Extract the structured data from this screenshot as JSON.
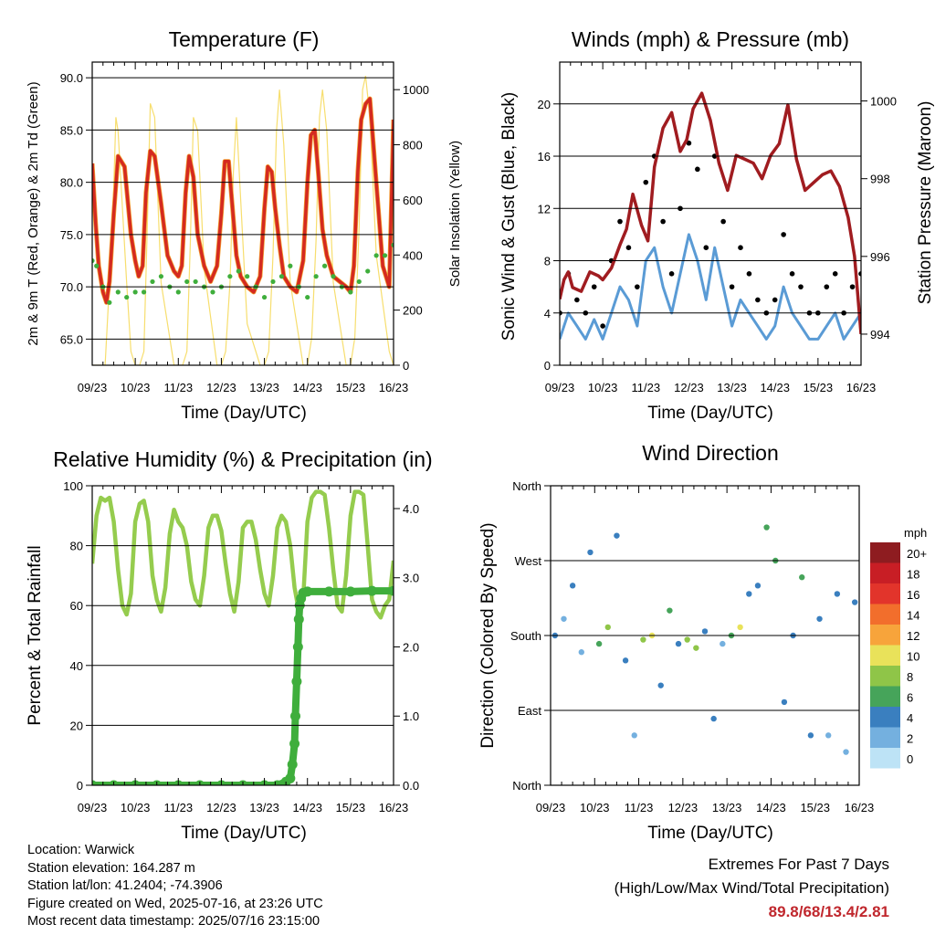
{
  "colors": {
    "temp2m": "#d42a20",
    "temp9m": "#f4a030",
    "dewpoint": "#3fae3c",
    "solar": "#f7de6e",
    "wind": "#5a9bd5",
    "gust": "#000000",
    "pressure": "#a01c20",
    "rh": "#95cc4e",
    "precip": "#3fae3c"
  },
  "x_ticks": [
    "09/23",
    "10/23",
    "11/23",
    "12/23",
    "13/23",
    "14/23",
    "15/23",
    "16/23"
  ],
  "chart_data": [
    {
      "id": "temperature",
      "type": "line",
      "title": "Temperature (F)",
      "xlabel": "Time (Day/UTC)",
      "ylabel": "2m & 9m T (Red, Orange) & 2m Td (Green)",
      "ylabel_right": "Solar Insolation (Yellow)",
      "xlim": [
        0,
        7
      ],
      "ylim": [
        62.5,
        91.5
      ],
      "ylim_right": [
        0,
        1100
      ],
      "yticks": [
        "65.0",
        "70.0",
        "75.0",
        "80.0",
        "85.0",
        "90.0"
      ],
      "yticks_right": [
        "0",
        "200",
        "400",
        "600",
        "800",
        "1000"
      ],
      "series": [
        {
          "x": [
            0,
            0.08,
            0.15,
            0.25,
            0.33,
            0.4,
            0.5,
            0.6,
            0.75,
            0.9,
            1.0,
            1.08,
            1.17,
            1.25,
            1.35,
            1.45,
            1.6,
            1.75,
            1.9,
            2.0,
            2.08,
            2.17,
            2.25,
            2.35,
            2.45,
            2.6,
            2.75,
            2.9,
            3.0,
            3.08,
            3.17,
            3.25,
            3.35,
            3.45,
            3.6,
            3.75,
            3.9,
            4.0,
            4.08,
            4.17,
            4.25,
            4.35,
            4.45,
            4.6,
            4.75,
            4.9,
            5.0,
            5.08,
            5.17,
            5.25,
            5.35,
            5.45,
            5.6,
            5.75,
            5.9,
            6.0,
            6.08,
            6.17,
            6.25,
            6.35,
            6.45,
            6.6,
            6.75,
            6.9,
            7.0
          ],
          "y": [
            81.8,
            76,
            72,
            69.5,
            68.5,
            70.5,
            77,
            82.5,
            81.5,
            75,
            72.5,
            71,
            72,
            79,
            83,
            82.5,
            78,
            73,
            71.5,
            71,
            72,
            79,
            82.5,
            80.5,
            75,
            72,
            70.5,
            72,
            77,
            82,
            82,
            78,
            73,
            71,
            70,
            69.5,
            71,
            77.5,
            81.5,
            81,
            77.5,
            74,
            71,
            70,
            69.5,
            72.5,
            80,
            84.5,
            85,
            81,
            75.5,
            73,
            71,
            70.5,
            70,
            69.5,
            72,
            81,
            86,
            87.5,
            88,
            80,
            72,
            70,
            86
          ]
        },
        {
          "x": [
            0,
            0.1,
            0.25,
            0.4,
            0.6,
            0.8,
            1.0,
            1.2,
            1.4,
            1.6,
            1.8,
            2.0,
            2.2,
            2.4,
            2.6,
            2.8,
            3.0,
            3.2,
            3.4,
            3.6,
            3.8,
            4.0,
            4.2,
            4.4,
            4.6,
            4.8,
            5.0,
            5.2,
            5.4,
            5.6,
            5.8,
            6.0,
            6.2,
            6.4,
            6.6,
            6.8,
            7.0
          ],
          "y": [
            72.5,
            72,
            70,
            68.5,
            69.5,
            69,
            69.5,
            69.5,
            70.5,
            71,
            70,
            69.5,
            70.5,
            70.5,
            70,
            69.5,
            70,
            71,
            71.5,
            71,
            70,
            69,
            70.5,
            71,
            72,
            70,
            69,
            71,
            72,
            71,
            70,
            69.5,
            70.5,
            71.5,
            73,
            73,
            74
          ]
        },
        {
          "x": [
            0,
            0.1,
            0.2,
            0.3,
            0.4,
            0.5,
            0.55,
            0.6,
            0.8,
            0.9,
            1.0,
            1.1,
            1.2,
            1.28,
            1.35,
            1.45,
            1.6,
            1.9,
            2.0,
            2.1,
            2.2,
            2.28,
            2.35,
            2.45,
            2.6,
            2.9,
            3.0,
            3.1,
            3.2,
            3.28,
            3.35,
            3.45,
            3.6,
            3.9,
            4.0,
            4.1,
            4.2,
            4.28,
            4.35,
            4.45,
            4.6,
            4.9,
            5.0,
            5.1,
            5.2,
            5.28,
            5.35,
            5.45,
            5.6,
            5.9,
            6.0,
            6.1,
            6.2,
            6.28,
            6.35,
            6.45,
            6.6,
            6.9,
            7.0
          ],
          "y": [
            0,
            0,
            0,
            0,
            300,
            650,
            900,
            850,
            300,
            50,
            0,
            0,
            50,
            500,
            950,
            900,
            300,
            0,
            0,
            0,
            50,
            450,
            900,
            850,
            350,
            0,
            0,
            50,
            300,
            700,
            900,
            600,
            150,
            0,
            0,
            50,
            400,
            850,
            1000,
            800,
            300,
            0,
            0,
            100,
            450,
            900,
            1000,
            850,
            300,
            0,
            0,
            100,
            500,
            1000,
            1050,
            900,
            400,
            50,
            0
          ]
        }
      ]
    },
    {
      "id": "winds",
      "type": "scatter",
      "title": "Winds (mph) & Pressure (mb)",
      "xlabel": "Time (Day/UTC)",
      "ylabel": "Sonic Wind & Gust (Blue, Black)",
      "ylabel_right": "Station Pressure (Maroon)",
      "xlim": [
        0,
        7
      ],
      "ylim": [
        0,
        23.2
      ],
      "ylim_right": [
        993.2,
        1001
      ],
      "yticks": [
        "0",
        "4",
        "8",
        "12",
        "16",
        "20"
      ],
      "yticks_right": [
        "994",
        "996",
        "998",
        "1000"
      ],
      "series": [
        {
          "x": [
            0,
            0.2,
            0.4,
            0.6,
            0.8,
            1.0,
            1.2,
            1.4,
            1.6,
            1.8,
            2.0,
            2.2,
            2.4,
            2.6,
            2.8,
            3.0,
            3.2,
            3.4,
            3.6,
            3.8,
            4.0,
            4.2,
            4.4,
            4.6,
            4.8,
            5.0,
            5.2,
            5.4,
            5.6,
            5.8,
            6.0,
            6.2,
            6.4,
            6.6,
            6.8,
            7.0
          ],
          "y": [
            2,
            4,
            3,
            2,
            3.5,
            2,
            4,
            6,
            5,
            3,
            8,
            9,
            6,
            4,
            7,
            10,
            8,
            5,
            9,
            6,
            3,
            5,
            4,
            3,
            2,
            3,
            6,
            4,
            3,
            2,
            2,
            3,
            4,
            2,
            3,
            4
          ]
        },
        {
          "x": [
            0,
            0.2,
            0.4,
            0.6,
            0.8,
            1.0,
            1.2,
            1.4,
            1.6,
            1.8,
            2.0,
            2.2,
            2.4,
            2.6,
            2.8,
            3.0,
            3.2,
            3.4,
            3.6,
            3.8,
            4.0,
            4.2,
            4.4,
            4.6,
            4.8,
            5.0,
            5.2,
            5.4,
            5.6,
            5.8,
            6.0,
            6.2,
            6.4,
            6.6,
            6.8,
            7.0
          ],
          "y": [
            4,
            7,
            5,
            4,
            6,
            3,
            8,
            11,
            9,
            6,
            14,
            16,
            11,
            7,
            12,
            17,
            15,
            9,
            16,
            11,
            6,
            9,
            7,
            5,
            4,
            5,
            10,
            7,
            6,
            4,
            4,
            6,
            7,
            4,
            6,
            7
          ]
        },
        {
          "x": [
            0,
            0.1,
            0.2,
            0.3,
            0.5,
            0.7,
            0.9,
            1.0,
            1.2,
            1.4,
            1.55,
            1.7,
            1.9,
            2.05,
            2.2,
            2.4,
            2.6,
            2.8,
            2.95,
            3.1,
            3.3,
            3.5,
            3.7,
            3.9,
            4.1,
            4.3,
            4.5,
            4.7,
            4.9,
            5.1,
            5.3,
            5.5,
            5.7,
            5.9,
            6.1,
            6.3,
            6.5,
            6.7,
            6.85,
            7.0
          ],
          "y": [
            994.9,
            995.4,
            995.6,
            995.2,
            995.1,
            995.6,
            995.5,
            995.4,
            995.7,
            996.3,
            996.7,
            997.6,
            996.8,
            996.4,
            998.3,
            999.3,
            999.7,
            998.7,
            999.0,
            999.8,
            1000.2,
            999.5,
            998.4,
            997.7,
            998.6,
            998.5,
            998.4,
            998.0,
            998.6,
            998.9,
            999.9,
            998.5,
            997.7,
            997.9,
            998.1,
            998.2,
            997.8,
            997.0,
            996.0,
            994.0
          ]
        }
      ]
    },
    {
      "id": "humidity",
      "type": "line",
      "title": "Relative Humidity (%) & Precipitation (in)",
      "xlabel": "Time (Day/UTC)",
      "ylabel": "Percent & Total Rainfall",
      "xlim": [
        0,
        7
      ],
      "ylim": [
        0,
        100
      ],
      "ylim_right": [
        0,
        4.33
      ],
      "yticks": [
        "0",
        "20",
        "40",
        "60",
        "80",
        "100"
      ],
      "yticks_right": [
        "0.0",
        "1.0",
        "2.0",
        "3.0",
        "4.0"
      ],
      "series": [
        {
          "x": [
            0,
            0.1,
            0.2,
            0.3,
            0.4,
            0.5,
            0.6,
            0.7,
            0.8,
            0.9,
            1.0,
            1.1,
            1.2,
            1.3,
            1.4,
            1.5,
            1.6,
            1.7,
            1.8,
            1.9,
            2.0,
            2.1,
            2.2,
            2.3,
            2.4,
            2.5,
            2.6,
            2.7,
            2.8,
            2.9,
            3.0,
            3.1,
            3.2,
            3.3,
            3.4,
            3.5,
            3.6,
            3.7,
            3.8,
            3.9,
            4.0,
            4.1,
            4.2,
            4.3,
            4.4,
            4.5,
            4.6,
            4.7,
            4.8,
            4.9,
            5.0,
            5.1,
            5.2,
            5.3,
            5.4,
            5.5,
            5.6,
            5.7,
            5.8,
            5.9,
            6.0,
            6.1,
            6.2,
            6.3,
            6.4,
            6.5,
            6.6,
            6.7,
            6.8,
            6.9,
            7.0
          ],
          "y": [
            74,
            90,
            96,
            95,
            96,
            88,
            72,
            60,
            57,
            64,
            88,
            94,
            95,
            88,
            70,
            62,
            58,
            66,
            84,
            92,
            88,
            86,
            80,
            68,
            62,
            60,
            70,
            86,
            90,
            90,
            85,
            74,
            64,
            58,
            68,
            86,
            88,
            88,
            82,
            72,
            64,
            60,
            70,
            86,
            90,
            88,
            80,
            66,
            58,
            62,
            88,
            96,
            98,
            98,
            97,
            86,
            72,
            60,
            58,
            70,
            90,
            98,
            98,
            97,
            80,
            62,
            58,
            56,
            60,
            62,
            75
          ]
        },
        {
          "x": [
            0,
            0.5,
            1.0,
            1.5,
            2.0,
            2.5,
            3.0,
            3.5,
            4.0,
            4.3,
            4.5,
            4.6,
            4.65,
            4.7,
            4.72,
            4.75,
            4.78,
            4.8,
            4.82,
            4.85,
            4.9,
            5.0,
            5.5,
            6.0,
            6.5,
            7.0
          ],
          "y": [
            0,
            0,
            0,
            0,
            0,
            0,
            0,
            0,
            0,
            0,
            0.05,
            0.1,
            0.3,
            0.6,
            1.0,
            1.5,
            2.0,
            2.4,
            2.6,
            2.7,
            2.78,
            2.8,
            2.8,
            2.8,
            2.81,
            2.81
          ]
        }
      ]
    },
    {
      "id": "wind_direction",
      "type": "scatter",
      "title": "Wind Direction",
      "xlabel": "Time (Day/UTC)",
      "ylabel": "Direction (Colored By Speed)",
      "xlim": [
        0,
        7
      ],
      "ylim": [
        0,
        360
      ],
      "yticks": [
        "North",
        "East",
        "South",
        "West",
        "North"
      ],
      "legend": {
        "title": "mph",
        "labels": [
          "20+",
          "18",
          "16",
          "14",
          "12",
          "10",
          "8",
          "6",
          "4",
          "2",
          "0"
        ],
        "colors": [
          "#8e1c20",
          "#c81e25",
          "#e2342b",
          "#f26e2c",
          "#f7a43b",
          "#e9e25a",
          "#8fc548",
          "#46a45a",
          "#3a7fbf",
          "#74b0df",
          "#bde3f6"
        ]
      },
      "series": [
        {
          "x": [
            0.1,
            0.3,
            0.5,
            0.7,
            0.9,
            1.1,
            1.3,
            1.5,
            1.7,
            1.9,
            2.1,
            2.3,
            2.5,
            2.7,
            2.9,
            3.1,
            3.3,
            3.5,
            3.7,
            3.9,
            4.1,
            4.3,
            4.5,
            4.7,
            4.9,
            5.1,
            5.3,
            5.5,
            5.7,
            5.9,
            6.1,
            6.3,
            6.5,
            6.7,
            6.9
          ],
          "y": [
            180,
            200,
            240,
            160,
            280,
            170,
            190,
            300,
            150,
            60,
            175,
            180,
            120,
            210,
            170,
            175,
            165,
            185,
            80,
            170,
            180,
            190,
            230,
            240,
            310,
            270,
            100,
            180,
            250,
            60,
            200,
            60,
            230,
            40,
            220
          ],
          "speed": [
            3,
            2,
            4,
            2,
            3,
            6,
            7,
            4,
            3,
            2,
            8,
            9,
            4,
            5,
            3,
            7,
            8,
            4,
            3,
            2,
            6,
            9,
            3,
            4,
            5,
            6,
            4,
            3,
            5,
            4,
            3,
            2,
            4,
            2,
            4
          ]
        }
      ]
    }
  ],
  "info": {
    "location": "Location: Warwick",
    "elevation": "Station elevation: 164.287 m",
    "latlon": "Station lat/lon: 41.2404; -74.3906",
    "created": "Figure created on Wed, 2025-07-16, at 23:26 UTC",
    "recent": "Most recent data timestamp: 2025/07/16 23:15:00"
  },
  "extremes": {
    "line1": "Extremes For Past 7 Days",
    "line2": "(High/Low/Max Wind/Total Precipitation)",
    "values": "89.8/68/13.4/2.81"
  }
}
